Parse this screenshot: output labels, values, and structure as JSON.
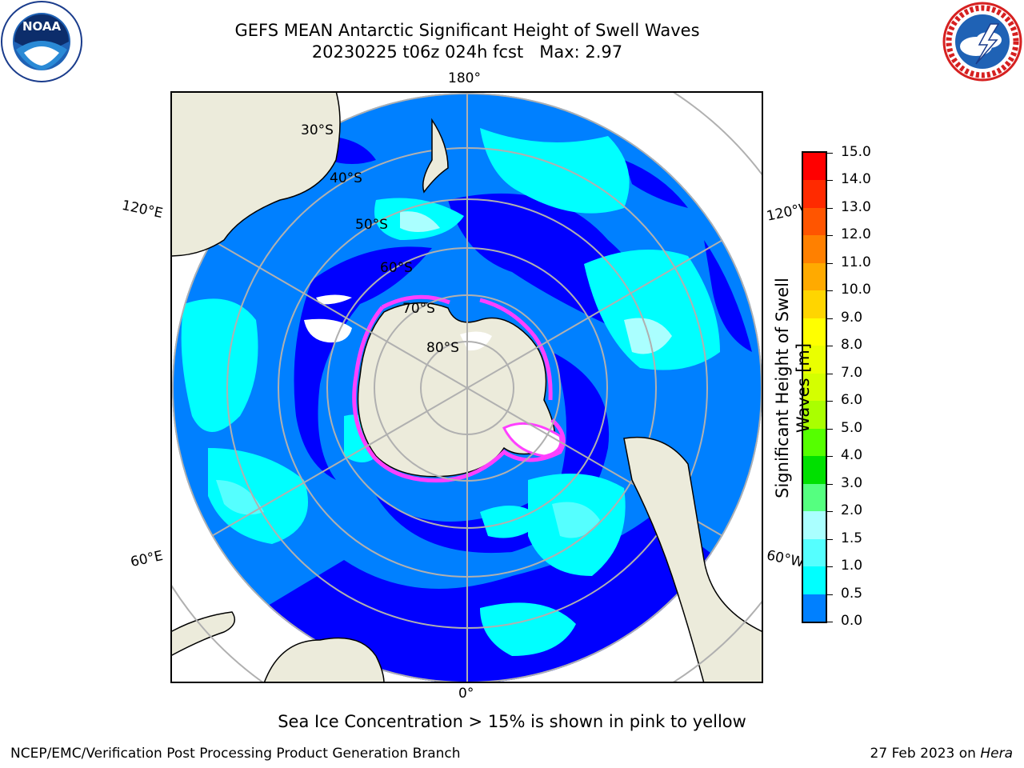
{
  "header": {
    "title_line1": "GEFS MEAN Antarctic Significant Height of Swell Waves",
    "title_line2": "20230225 t06z 024h fcst   Max: 2.97",
    "logo_left": "NOAA",
    "logo_right": "NATIONAL WEATHER SERVICE"
  },
  "map": {
    "projection": "south-polar-stereographic",
    "lon_labels": {
      "top": "180°",
      "bottom": "0°",
      "upper_left": "120°E",
      "upper_right": "120°W",
      "lower_left": "60°E",
      "lower_right": "60°W"
    },
    "lat_labels": [
      "30°S",
      "40°S",
      "50°S",
      "60°S",
      "70°S",
      "80°S"
    ],
    "colors": {
      "land": "#ecebdb",
      "ocean_low": "#0000ff",
      "ocean_mid": "#0080ff",
      "ice_edge": "#ff40ff"
    }
  },
  "colorbar": {
    "title_line1": "Significant Height of Swell",
    "title_line2": "Waves [m]",
    "ticks": [
      "15.0",
      "14.0",
      "13.0",
      "12.0",
      "11.0",
      "10.0",
      "9.0",
      "8.0",
      "7.0",
      "6.0",
      "5.0",
      "4.0",
      "3.0",
      "2.0",
      "1.5",
      "1.0",
      "0.5",
      "0.0"
    ],
    "colors": [
      "#ff0000",
      "#ff2a00",
      "#ff5500",
      "#ff8000",
      "#ffaa00",
      "#ffd500",
      "#ffff00",
      "#eaff00",
      "#d4ff00",
      "#aaff00",
      "#55ff00",
      "#00e000",
      "#55ff80",
      "#aaffff",
      "#55ffff",
      "#00ffff",
      "#0080ff",
      "#0000ff"
    ]
  },
  "footer": {
    "note": "Sea Ice Concentration > 15% is shown in pink to yellow",
    "credit_left": "NCEP/EMC/Verification Post Processing Product Generation Branch",
    "credit_right_prefix": "27 Feb 2023 on ",
    "credit_right_italic": "Hera"
  }
}
